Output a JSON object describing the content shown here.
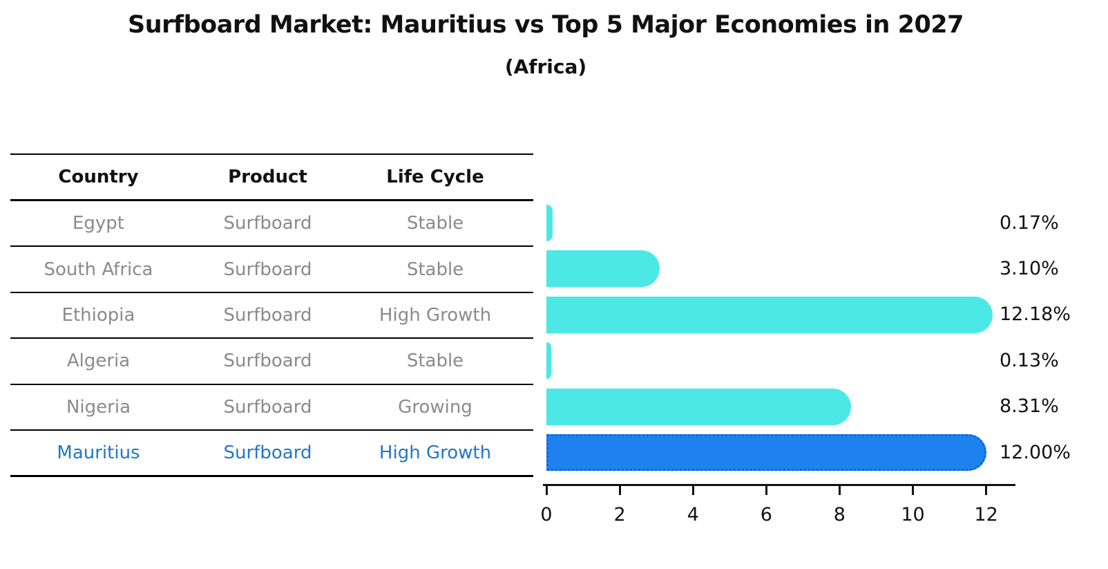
{
  "title": "Surfboard Market: Mauritius vs Top 5 Major Economies in 2027",
  "subtitle": "(Africa)",
  "table": {
    "headers": [
      "Country",
      "Product",
      "Life Cycle"
    ],
    "rows": [
      {
        "country": "Egypt",
        "product": "Surfboard",
        "life_cycle": "Stable",
        "highlight": false
      },
      {
        "country": "South Africa",
        "product": "Surfboard",
        "life_cycle": "Stable",
        "highlight": false
      },
      {
        "country": "Ethiopia",
        "product": "Surfboard",
        "life_cycle": "High Growth",
        "highlight": false
      },
      {
        "country": "Algeria",
        "product": "Surfboard",
        "life_cycle": "Stable",
        "highlight": false
      },
      {
        "country": "Nigeria",
        "product": "Surfboard",
        "life_cycle": "Growing",
        "highlight": false
      },
      {
        "country": "Mauritius",
        "product": "Surfboard",
        "life_cycle": "High Growth",
        "highlight": true
      }
    ]
  },
  "chart_data": {
    "type": "bar",
    "orientation": "horizontal",
    "title": "Surfboard Market: Mauritius vs Top 5 Major Economies in 2027",
    "subtitle": "(Africa)",
    "categories": [
      "Egypt",
      "South Africa",
      "Ethiopia",
      "Algeria",
      "Nigeria",
      "Mauritius"
    ],
    "values": [
      0.17,
      3.1,
      12.18,
      0.13,
      8.31,
      12.0
    ],
    "value_labels": [
      "0.17%",
      "3.10%",
      "12.18%",
      "0.13%",
      "8.31%",
      "12.00%"
    ],
    "x_ticks": [
      0,
      2,
      4,
      6,
      8,
      10,
      12
    ],
    "x_tick_labels": [
      "0",
      "2",
      "4",
      "6",
      "8",
      "10",
      "12"
    ],
    "xlim": [
      0,
      12.8
    ],
    "xlabel": "",
    "ylabel": "",
    "grid": false,
    "legend": false,
    "highlight_index": 5,
    "colors": {
      "bar": "#4be8e6",
      "highlight_bar": "#1e82ee",
      "highlight_border": "#1264d8",
      "highlight_text": "#2177cb",
      "row_text": "#8a8a8a",
      "header_text": "#111111",
      "axis": "#111111"
    }
  }
}
